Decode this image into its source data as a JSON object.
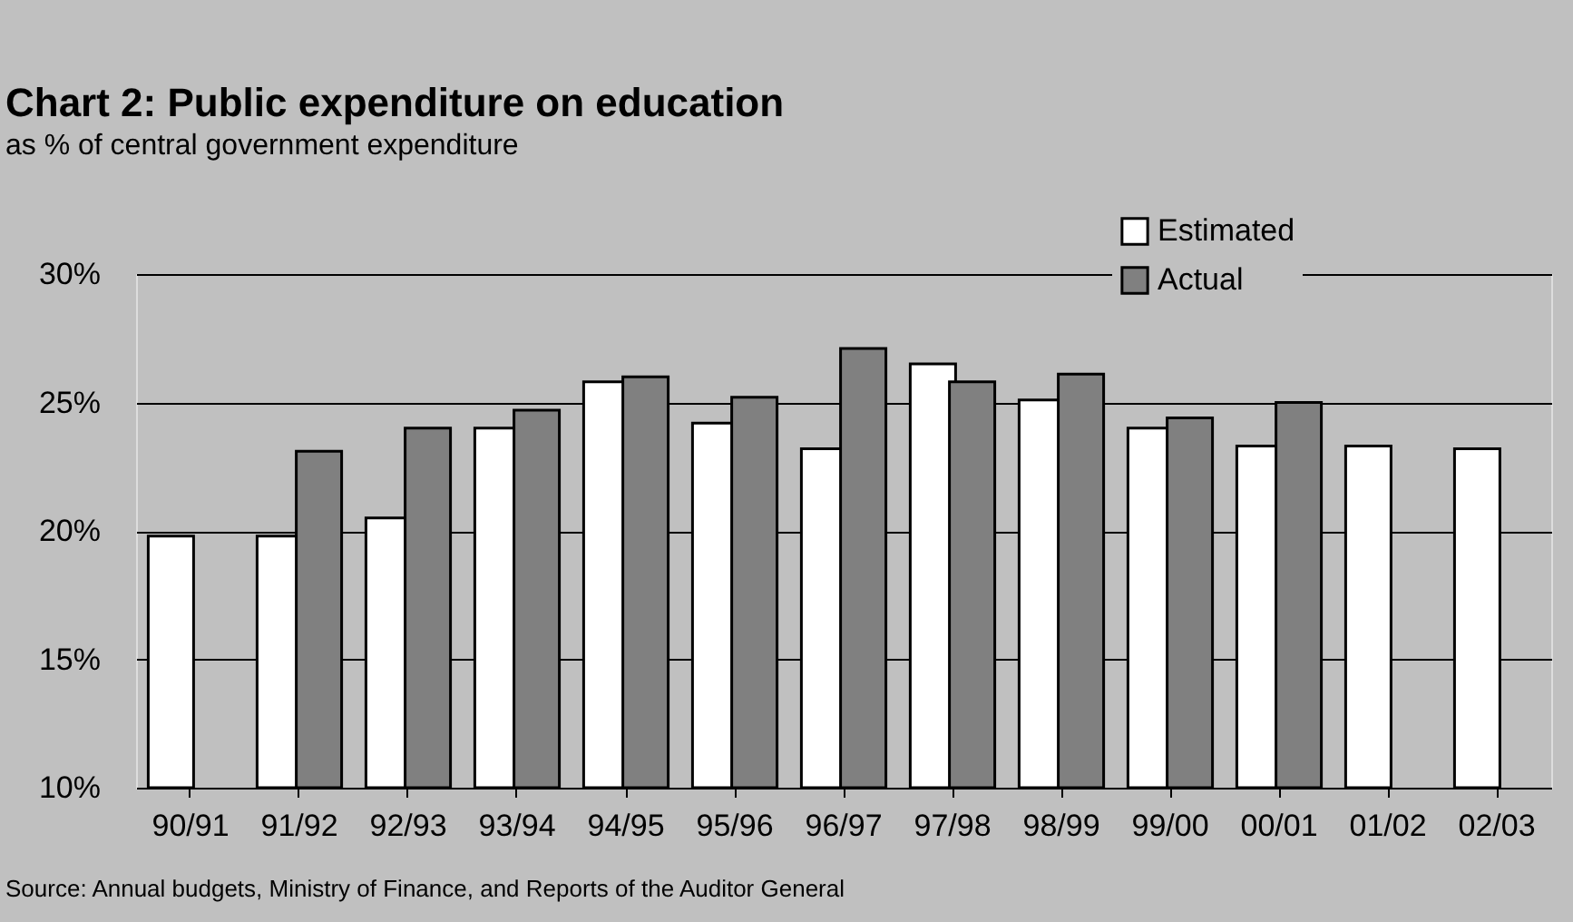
{
  "chart_data": {
    "type": "bar",
    "title": "Chart 2: Public expenditure on education",
    "subtitle": "as % of central government expenditure",
    "categories": [
      "90/91",
      "91/92",
      "92/93",
      "93/94",
      "94/95",
      "95/96",
      "96/97",
      "97/98",
      "98/99",
      "99/00",
      "00/01",
      "01/02",
      "02/03"
    ],
    "series": [
      {
        "name": "Estimated",
        "color": "#ffffff",
        "values": [
          19.8,
          19.8,
          20.5,
          24.0,
          25.8,
          24.2,
          23.2,
          26.5,
          25.1,
          24.0,
          23.3,
          23.3,
          23.2
        ]
      },
      {
        "name": "Actual",
        "color": "#808080",
        "values": [
          null,
          23.1,
          24.0,
          24.7,
          26.0,
          25.2,
          27.1,
          25.8,
          26.1,
          24.4,
          25.0,
          null,
          null
        ]
      }
    ],
    "ylim": [
      10,
      30
    ],
    "yticks": [
      {
        "value": 10,
        "label": "10%"
      },
      {
        "value": 15,
        "label": "15%"
      },
      {
        "value": 20,
        "label": "20%"
      },
      {
        "value": 25,
        "label": "25%"
      },
      {
        "value": 30,
        "label": "30%"
      }
    ],
    "grid": "y",
    "legend": "top right",
    "annotations": [
      "Source: Annual budgets, Ministry of Finance, and Reports of the Auditor General"
    ]
  }
}
